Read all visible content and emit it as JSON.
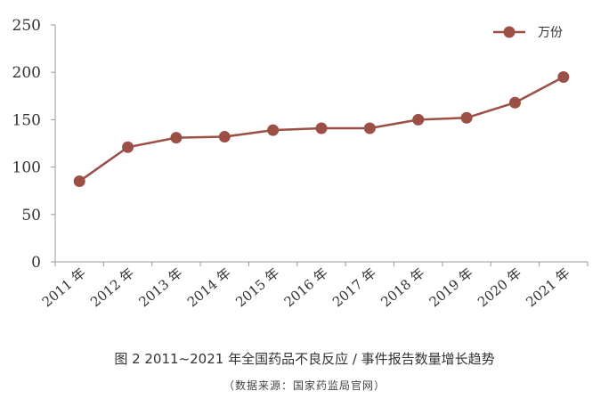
{
  "chart_data": {
    "type": "line",
    "categories": [
      "2011 年",
      "2012 年",
      "2013 年",
      "2014 年",
      "2015 年",
      "2016 年",
      "2017 年",
      "2018 年",
      "2019 年",
      "2020 年",
      "2021 年"
    ],
    "series": [
      {
        "name": "万份",
        "values": [
          85,
          121,
          131,
          132,
          139,
          141,
          141,
          150,
          152,
          168,
          195
        ]
      }
    ],
    "ylim": [
      0,
      250
    ],
    "yticks": [
      0,
      50,
      100,
      150,
      200,
      250
    ],
    "legend_position": "top-right",
    "grid": false,
    "color": "#9b4f45"
  },
  "caption": {
    "title": "图 2   2011~2021 年全国药品不良反应 / 事件报告数量增长趋势",
    "source": "（数据来源：国家药监局官网）"
  }
}
